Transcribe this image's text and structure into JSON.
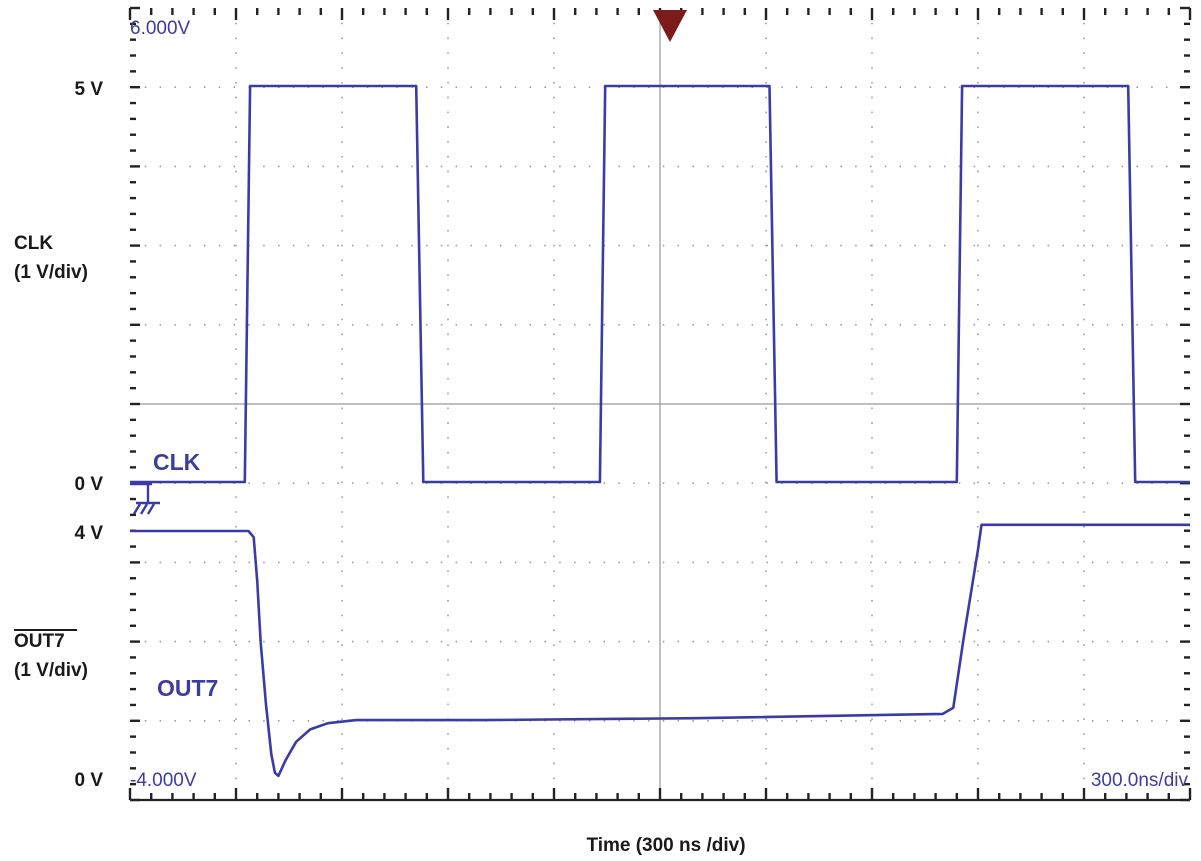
{
  "chart_data": {
    "type": "line",
    "title": "",
    "xlabel": "Time (300 ns /div)",
    "timebase_readout": "300.0ns/div",
    "x_unit": "ns",
    "xlim": [
      0,
      3000
    ],
    "grid": true,
    "trigger_time_ns": 1530,
    "screen_limits": {
      "top": "6.000V",
      "bottom": "-4.000V"
    },
    "channels": [
      {
        "name": "CLK",
        "trace_label": "CLK",
        "axis_label_line1": "CLK",
        "axis_label_line2": "(1 V/div)",
        "zero_label": "0 V",
        "high_label": "5 V",
        "color": "#3b3ba8",
        "ylim": [
          -0.5,
          6.0
        ],
        "points": [
          [
            0,
            0
          ],
          [
            325,
            0
          ],
          [
            340,
            5
          ],
          [
            810,
            5
          ],
          [
            830,
            0
          ],
          [
            1330,
            0
          ],
          [
            1345,
            5
          ],
          [
            1810,
            5
          ],
          [
            1830,
            0
          ],
          [
            2340,
            0
          ],
          [
            2355,
            5
          ],
          [
            2825,
            5
          ],
          [
            2845,
            0
          ],
          [
            3000,
            0
          ]
        ]
      },
      {
        "name": "OUT7",
        "trace_label": "OUT7",
        "axis_label_line1": "OUT7",
        "axis_label_line2": "(1 V/div)",
        "zero_label": "0 V",
        "high_label": "4 V",
        "color": "#3b3ba8",
        "ylim": [
          0,
          4.0
        ],
        "points": [
          [
            0,
            4.0
          ],
          [
            335,
            4.0
          ],
          [
            350,
            3.9
          ],
          [
            360,
            3.2
          ],
          [
            370,
            2.2
          ],
          [
            385,
            1.2
          ],
          [
            400,
            0.4
          ],
          [
            410,
            0.1
          ],
          [
            420,
            0.05
          ],
          [
            440,
            0.3
          ],
          [
            470,
            0.6
          ],
          [
            510,
            0.8
          ],
          [
            560,
            0.9
          ],
          [
            640,
            0.95
          ],
          [
            1000,
            0.95
          ],
          [
            1600,
            0.98
          ],
          [
            2300,
            1.05
          ],
          [
            2330,
            1.15
          ],
          [
            2360,
            2.3
          ],
          [
            2400,
            3.7
          ],
          [
            2410,
            4.1
          ],
          [
            3000,
            4.1
          ]
        ]
      }
    ]
  }
}
